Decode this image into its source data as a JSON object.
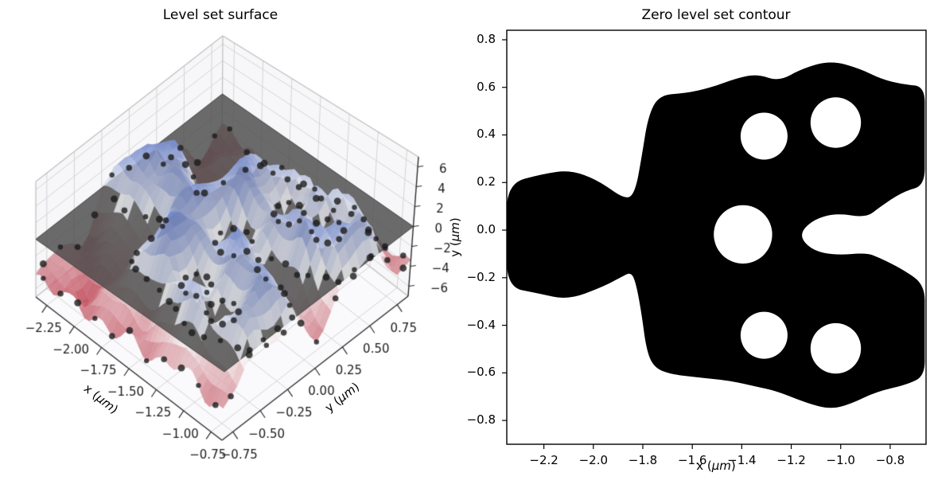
{
  "figure": {
    "background": "#ffffff"
  },
  "left_plot": {
    "title": "Level set surface",
    "xlabel_prefix": "x (",
    "xlabel_math": "μm",
    "xlabel_suffix": ")",
    "ylabel_prefix": "y (",
    "ylabel_math": "μm",
    "ylabel_suffix": ")",
    "x_tick_labels": [
      "−2.25",
      "−2.00",
      "−1.75",
      "−1.50",
      "−1.25",
      "−1.00",
      "−0.75"
    ],
    "y_tick_labels": [
      "−0.75",
      "−0.50",
      "−0.25",
      "0.00",
      "0.25",
      "0.50",
      "0.75"
    ],
    "z_tick_labels": [
      "−6",
      "−4",
      "−2",
      "0",
      "2",
      "4",
      "6"
    ]
  },
  "right_plot": {
    "title": "Zero level set contour",
    "xlabel_prefix": "x (",
    "xlabel_math": "μm",
    "xlabel_suffix": ")",
    "ylabel_prefix": "y (",
    "ylabel_math": "μm",
    "ylabel_suffix": ")",
    "x_tick_labels": [
      "−2.2",
      "−2.0",
      "−1.8",
      "−1.6",
      "−1.4",
      "−1.2",
      "−1.0",
      "−0.8"
    ],
    "y_tick_labels": [
      "0.8",
      "0.6",
      "0.4",
      "0.2",
      "0.0",
      "−0.2",
      "−0.4",
      "−0.6",
      "−0.8"
    ]
  },
  "chart_data": [
    {
      "type": "surface3d",
      "title": "Level set surface",
      "xlabel": "x (μm)",
      "ylabel": "y (μm)",
      "zlabel": "",
      "xlim": [
        -2.35,
        -0.65
      ],
      "ylim": [
        -0.85,
        0.85
      ],
      "zlim": [
        -7,
        7
      ],
      "x_ticks": [
        -2.25,
        -2.0,
        -1.75,
        -1.5,
        -1.25,
        -1.0,
        -0.75
      ],
      "y_ticks": [
        -0.75,
        -0.5,
        -0.25,
        0.0,
        0.25,
        0.5,
        0.75
      ],
      "z_ticks": [
        -6,
        -4,
        -2,
        0,
        2,
        4,
        6
      ],
      "colormap": "coolwarm reversed: blue = positive level-set values (peaks ~ +6), red = negative (valleys ~ -6)",
      "zero_plane_z": 0,
      "zero_plane_color": "#4a4a4a",
      "surface_description": "level-set function phi(x,y): ~ +4 inside the zero-level region, ~ -4 outside, with radial-basis ripples; rendered as translucent mesh",
      "scatter_description": "black sample points on the zero level set and along the domain rim",
      "render_params": {
        "plateau": 4.3,
        "edge_width": 0.13,
        "mesh": [
          42,
          28
        ],
        "alpha": 0.78,
        "ripples": [
          {
            "kx": 11.5,
            "ky": 11.5,
            "px": 0.0,
            "py": 0.0,
            "amp": 1.5
          },
          {
            "kx": 23.0,
            "ky": 19.0,
            "px": 1.3,
            "py": 0.7,
            "amp": 0.9
          }
        ]
      }
    },
    {
      "type": "filled_contour",
      "title": "Zero level set contour",
      "xlabel": "x (μm)",
      "ylabel": "y (μm)",
      "xlim": [
        -2.35,
        -0.655
      ],
      "ylim": [
        -0.9,
        0.84
      ],
      "x_ticks": [
        -2.2,
        -2.0,
        -1.8,
        -1.6,
        -1.4,
        -1.2,
        -1.0,
        -0.8
      ],
      "y_ticks": [
        0.8,
        0.6,
        0.4,
        0.2,
        0.0,
        -0.2,
        -0.4,
        -0.6,
        -0.8
      ],
      "fill_color": "#000000",
      "region": {
        "outer_boundary": [
          [
            -2.35,
            0.196
          ],
          [
            -2.206,
            0.236
          ],
          [
            -2.094,
            0.253
          ],
          [
            -1.981,
            0.21
          ],
          [
            -1.869,
            0.126
          ],
          [
            -1.831,
            0.159
          ],
          [
            -1.805,
            0.304
          ],
          [
            -1.779,
            0.478
          ],
          [
            -1.734,
            0.568
          ],
          [
            -1.629,
            0.575
          ],
          [
            -1.523,
            0.599
          ],
          [
            -1.42,
            0.639
          ],
          [
            -1.337,
            0.656
          ],
          [
            -1.25,
            0.625
          ],
          [
            -1.157,
            0.679
          ],
          [
            -1.039,
            0.713
          ],
          [
            -0.923,
            0.679
          ],
          [
            -0.836,
            0.635
          ],
          [
            -0.747,
            0.612
          ],
          [
            -0.66,
            0.605
          ],
          [
            -0.66,
            0.47
          ],
          [
            -0.66,
            0.33
          ],
          [
            -0.66,
            0.186
          ],
          [
            -0.747,
            0.163
          ],
          [
            -0.843,
            0.096
          ],
          [
            -0.897,
            0.052
          ],
          [
            -1.019,
            0.072
          ],
          [
            -1.116,
            0.042
          ],
          [
            -1.17,
            -0.022
          ],
          [
            -1.116,
            -0.085
          ],
          [
            -1.019,
            -0.106
          ],
          [
            -0.897,
            -0.095
          ],
          [
            -0.843,
            -0.116
          ],
          [
            -0.747,
            -0.166
          ],
          [
            -0.66,
            -0.23
          ],
          [
            -0.66,
            -0.36
          ],
          [
            -0.66,
            -0.49
          ],
          [
            -0.66,
            -0.612
          ],
          [
            -0.731,
            -0.649
          ],
          [
            -0.856,
            -0.679
          ],
          [
            -0.955,
            -0.729
          ],
          [
            -1.039,
            -0.753
          ],
          [
            -1.132,
            -0.729
          ],
          [
            -1.26,
            -0.676
          ],
          [
            -1.337,
            -0.659
          ],
          [
            -1.452,
            -0.632
          ],
          [
            -1.58,
            -0.619
          ],
          [
            -1.693,
            -0.605
          ],
          [
            -1.757,
            -0.575
          ],
          [
            -1.786,
            -0.501
          ],
          [
            -1.805,
            -0.35
          ],
          [
            -1.827,
            -0.226
          ],
          [
            -1.847,
            -0.176
          ],
          [
            -1.885,
            -0.196
          ],
          [
            -1.965,
            -0.24
          ],
          [
            -2.103,
            -0.293
          ],
          [
            -2.222,
            -0.266
          ],
          [
            -2.35,
            -0.24
          ],
          [
            -2.35,
            -0.022
          ]
        ],
        "holes": [
          {
            "cx": -1.31,
            "cy": 0.395,
            "r": 0.095
          },
          {
            "cx": -1.02,
            "cy": 0.452,
            "r": 0.102
          },
          {
            "cx": -1.395,
            "cy": -0.018,
            "r": 0.118
          },
          {
            "cx": -1.31,
            "cy": -0.442,
            "r": 0.095
          },
          {
            "cx": -1.02,
            "cy": -0.497,
            "r": 0.102
          }
        ]
      }
    }
  ]
}
